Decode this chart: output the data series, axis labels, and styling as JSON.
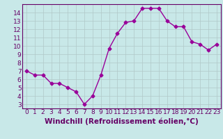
{
  "x": [
    0,
    1,
    2,
    3,
    4,
    5,
    6,
    7,
    8,
    9,
    10,
    11,
    12,
    13,
    14,
    15,
    16,
    17,
    18,
    19,
    20,
    21,
    22,
    23
  ],
  "y": [
    7.0,
    6.5,
    6.5,
    5.5,
    5.5,
    5.0,
    4.5,
    3.0,
    4.0,
    6.5,
    9.7,
    11.5,
    12.8,
    13.0,
    14.5,
    14.5,
    14.5,
    13.0,
    12.3,
    12.3,
    10.5,
    10.2,
    9.5,
    10.2
  ],
  "line_color": "#990099",
  "marker": "D",
  "marker_size": 2.5,
  "bg_color": "#c8e8e8",
  "grid_color": "#b0c8c8",
  "xlabel": "Windchill (Refroidissement éolien,°C)",
  "xlim": [
    -0.5,
    23.5
  ],
  "ylim": [
    2.5,
    15.0
  ],
  "yticks": [
    3,
    4,
    5,
    6,
    7,
    8,
    9,
    10,
    11,
    12,
    13,
    14
  ],
  "xticks": [
    0,
    1,
    2,
    3,
    4,
    5,
    6,
    7,
    8,
    9,
    10,
    11,
    12,
    13,
    14,
    15,
    16,
    17,
    18,
    19,
    20,
    21,
    22,
    23
  ],
  "xlabel_color": "#660066",
  "tick_color": "#660066",
  "spine_color": "#660066",
  "font_size": 6.5,
  "xlabel_fontsize": 7.5
}
